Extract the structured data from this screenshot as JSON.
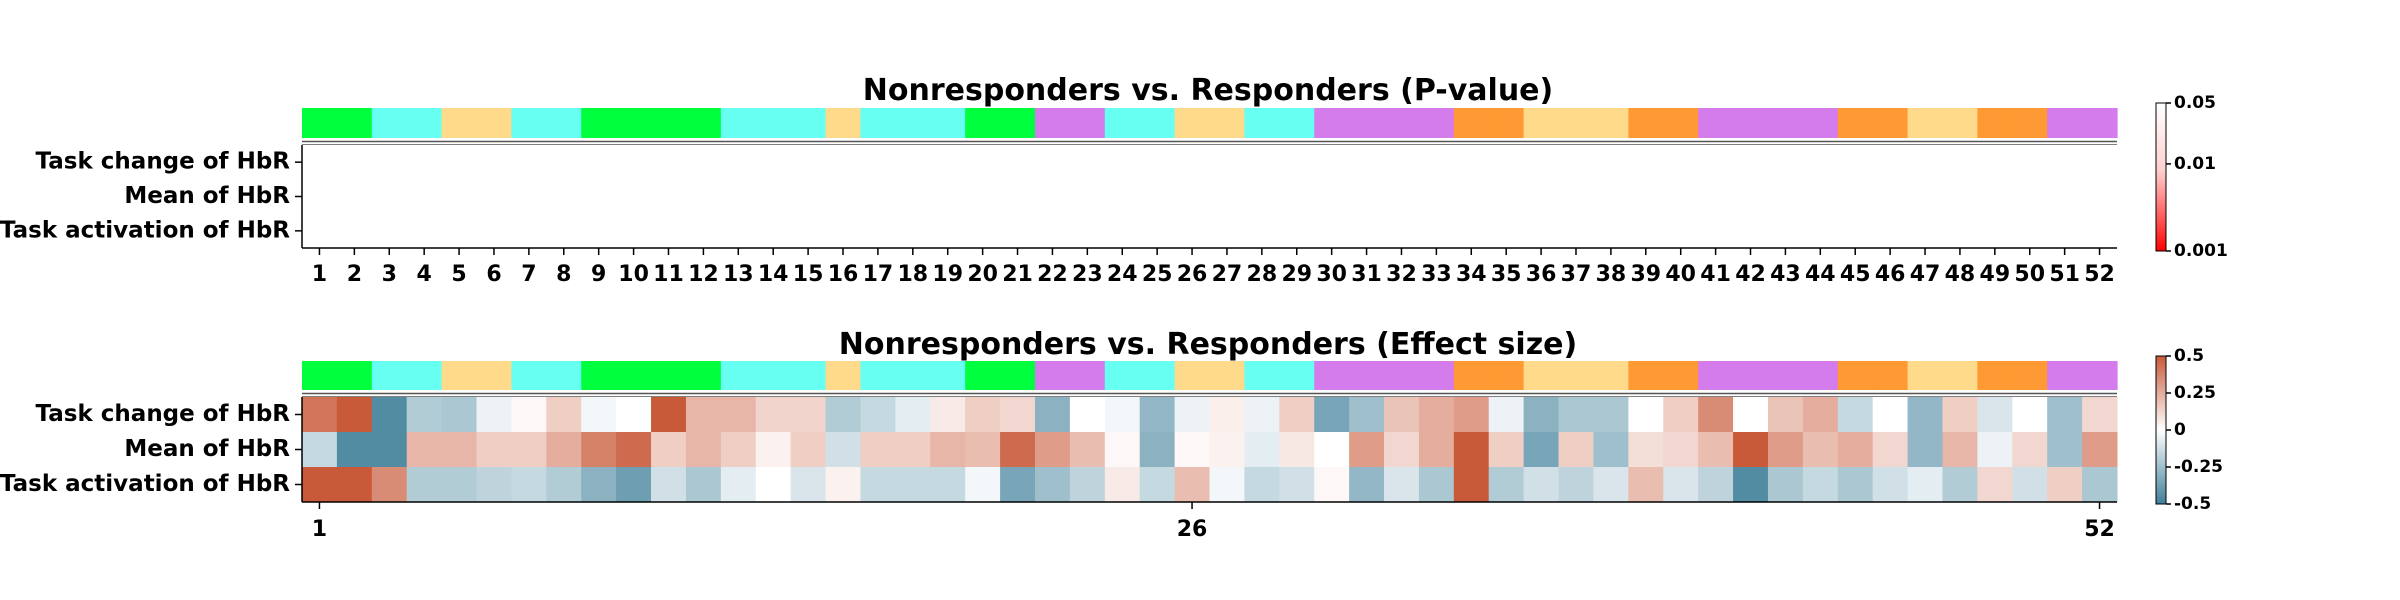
{
  "region_colors": {
    "green": "#00ff3c",
    "cyan": "#66fff2",
    "yellow": "#ffda8a",
    "purple": "#d47cec",
    "orange": "#ff9933"
  },
  "channel_regions": [
    "green",
    "green",
    "cyan",
    "cyan",
    "yellow",
    "yellow",
    "cyan",
    "cyan",
    "green",
    "green",
    "green",
    "green",
    "cyan",
    "cyan",
    "cyan",
    "yellow",
    "cyan",
    "cyan",
    "cyan",
    "green",
    "green",
    "purple",
    "purple",
    "cyan",
    "cyan",
    "yellow",
    "yellow",
    "cyan",
    "cyan",
    "purple",
    "purple",
    "purple",
    "purple",
    "orange",
    "orange",
    "yellow",
    "yellow",
    "yellow",
    "orange",
    "orange",
    "purple",
    "purple",
    "purple",
    "purple",
    "orange",
    "orange",
    "yellow",
    "yellow",
    "orange",
    "orange",
    "purple",
    "purple"
  ],
  "chart_data": [
    {
      "type": "heatmap",
      "title": "Nonresponders vs. Responders (P-value)",
      "rows": [
        "Task change of HbR",
        "Mean of HbR",
        "Task activation of HbR"
      ],
      "columns": [
        "1",
        "2",
        "3",
        "4",
        "5",
        "6",
        "7",
        "8",
        "9",
        "10",
        "11",
        "12",
        "13",
        "14",
        "15",
        "16",
        "17",
        "18",
        "19",
        "20",
        "21",
        "22",
        "23",
        "24",
        "25",
        "26",
        "27",
        "28",
        "29",
        "30",
        "31",
        "32",
        "33",
        "34",
        "35",
        "36",
        "37",
        "38",
        "39",
        "40",
        "41",
        "42",
        "43",
        "44",
        "45",
        "46",
        "47",
        "48",
        "49",
        "50",
        "51",
        "52"
      ],
      "x_ticks": [
        "1",
        "2",
        "3",
        "4",
        "5",
        "6",
        "7",
        "8",
        "9",
        "10",
        "11",
        "12",
        "13",
        "14",
        "15",
        "16",
        "17",
        "18",
        "19",
        "20",
        "21",
        "22",
        "23",
        "24",
        "25",
        "26",
        "27",
        "28",
        "29",
        "30",
        "31",
        "32",
        "33",
        "34",
        "35",
        "36",
        "37",
        "38",
        "39",
        "40",
        "41",
        "42",
        "43",
        "44",
        "45",
        "46",
        "47",
        "48",
        "49",
        "50",
        "51",
        "52"
      ],
      "values": null,
      "colorbar": {
        "scale": "log",
        "range": [
          0.001,
          0.05
        ],
        "ticks": [
          "0.05",
          "0.01",
          "0.001"
        ],
        "colors": [
          "#ff0000",
          "#ffffff"
        ]
      }
    },
    {
      "type": "heatmap",
      "title": "Nonresponders vs. Responders (Effect size)",
      "rows": [
        "Task change of HbR",
        "Mean of HbR",
        "Task activation of HbR"
      ],
      "columns": [
        "1",
        "2",
        "3",
        "4",
        "5",
        "6",
        "7",
        "8",
        "9",
        "10",
        "11",
        "12",
        "13",
        "14",
        "15",
        "16",
        "17",
        "18",
        "19",
        "20",
        "21",
        "22",
        "23",
        "24",
        "25",
        "26",
        "27",
        "28",
        "29",
        "30",
        "31",
        "32",
        "33",
        "34",
        "35",
        "36",
        "37",
        "38",
        "39",
        "40",
        "41",
        "42",
        "43",
        "44",
        "45",
        "46",
        "47",
        "48",
        "49",
        "50",
        "51",
        "52"
      ],
      "x_ticks": [
        "1",
        "26",
        "52"
      ],
      "x_tick_positions": [
        1,
        26,
        52
      ],
      "values": [
        [
          0.42,
          0.5,
          -0.45,
          -0.2,
          -0.22,
          -0.05,
          0.02,
          0.15,
          -0.03,
          0.0,
          0.5,
          0.22,
          0.22,
          0.13,
          0.13,
          -0.2,
          -0.15,
          -0.07,
          0.06,
          0.15,
          0.12,
          -0.3,
          0.0,
          -0.03,
          -0.28,
          -0.05,
          0.05,
          -0.05,
          0.15,
          -0.35,
          -0.25,
          0.18,
          0.25,
          0.3,
          -0.05,
          -0.3,
          -0.22,
          -0.22,
          0.0,
          0.15,
          0.35,
          0.0,
          0.18,
          0.25,
          -0.15,
          0.0,
          -0.28,
          0.15,
          -0.1,
          0.0,
          -0.25,
          0.12
        ],
        [
          -0.15,
          -0.45,
          -0.45,
          0.22,
          0.22,
          0.15,
          0.15,
          0.25,
          0.38,
          0.45,
          0.15,
          0.22,
          0.15,
          0.04,
          0.15,
          -0.12,
          0.15,
          0.15,
          0.22,
          0.2,
          0.45,
          0.3,
          0.2,
          0.02,
          -0.3,
          0.02,
          0.04,
          -0.07,
          0.07,
          0.0,
          0.3,
          0.12,
          0.25,
          0.5,
          0.15,
          -0.35,
          0.15,
          -0.25,
          0.1,
          0.12,
          0.2,
          0.5,
          0.3,
          0.2,
          0.25,
          0.12,
          -0.28,
          0.22,
          -0.05,
          0.12,
          -0.25,
          0.3
        ],
        [
          0.5,
          0.5,
          0.35,
          -0.2,
          -0.2,
          -0.17,
          -0.15,
          -0.2,
          -0.3,
          -0.38,
          -0.12,
          -0.22,
          -0.07,
          0.0,
          -0.1,
          0.04,
          -0.15,
          -0.15,
          -0.15,
          -0.03,
          -0.35,
          -0.25,
          -0.17,
          0.06,
          -0.15,
          0.2,
          -0.03,
          -0.15,
          -0.12,
          0.02,
          -0.28,
          -0.1,
          -0.22,
          0.5,
          -0.2,
          -0.12,
          -0.17,
          -0.1,
          0.2,
          -0.1,
          -0.17,
          -0.45,
          -0.22,
          -0.15,
          -0.22,
          -0.12,
          -0.07,
          -0.2,
          0.12,
          -0.12,
          0.15,
          -0.22
        ]
      ],
      "colorbar": {
        "range": [
          -0.5,
          0.5
        ],
        "ticks": [
          "0.5",
          "0.25",
          "0",
          "-0.25",
          "-0.5"
        ],
        "colors": [
          "#3f7f99",
          "#ffffff",
          "#c85a3a"
        ]
      }
    }
  ]
}
